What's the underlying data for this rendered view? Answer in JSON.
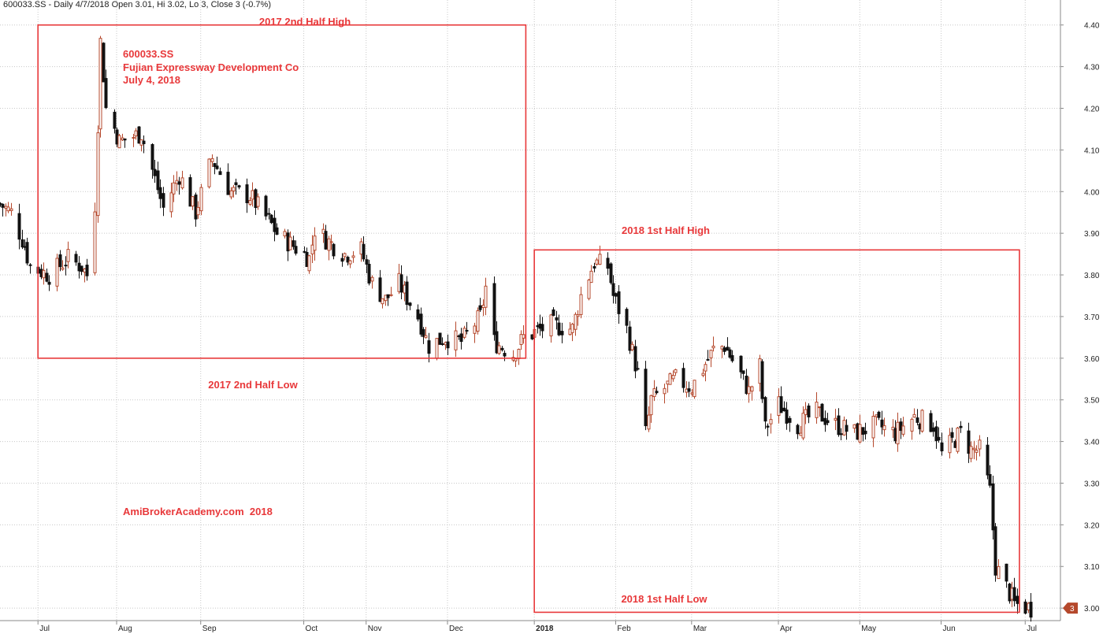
{
  "header": {
    "text": "600033.SS - Daily 4/7/2018 Open 3.01, Hi 3.02, Lo 3, Close 3 (-0.7%)"
  },
  "annotations": {
    "symbol": "600033.SS",
    "company": "Fujian Expressway Development Co",
    "date": "July 4, 2018",
    "h2_2017_high": "2017 2nd Half High",
    "h2_2017_low": "2017 2nd Half Low",
    "h1_2018_high": "2018 1st Half High",
    "h1_2018_low": "2018 1st Half Low",
    "watermark": "AmiBrokerAcademy.com  2018"
  },
  "colors": {
    "background": "#ffffff",
    "grid": "#c8c8c8",
    "up_candle": "#b5482c",
    "down_candle": "#111111",
    "annotation": "#e8383a",
    "axis_text": "#222222",
    "last_price_marker": "#b5482c"
  },
  "chart_data": {
    "type": "candlestick",
    "y_axis": {
      "position": "right",
      "ylim": [
        2.97,
        4.46
      ],
      "ticks": [
        "4.40",
        "4.30",
        "4.20",
        "4.10",
        "4.00",
        "3.90",
        "3.80",
        "3.70",
        "3.60",
        "3.50",
        "3.40",
        "3.30",
        "3.20",
        "3.10",
        "3.00"
      ]
    },
    "x_axis": {
      "start": "2017-06-19",
      "end": "2018-07-15",
      "labels": [
        {
          "date": "2017-07-03",
          "label": "Jul"
        },
        {
          "date": "2017-08-01",
          "label": "Aug"
        },
        {
          "date": "2017-09-01",
          "label": "Sep"
        },
        {
          "date": "2017-10-09",
          "label": "Oct"
        },
        {
          "date": "2017-11-01",
          "label": "Nov"
        },
        {
          "date": "2017-12-01",
          "label": "Dec"
        },
        {
          "date": "2018-01-02",
          "label": "2018"
        },
        {
          "date": "2018-02-01",
          "label": "Feb"
        },
        {
          "date": "2018-03-01",
          "label": "Mar"
        },
        {
          "date": "2018-04-02",
          "label": "Apr"
        },
        {
          "date": "2018-05-02",
          "label": "May"
        },
        {
          "date": "2018-06-01",
          "label": "Jun"
        },
        {
          "date": "2018-07-02",
          "label": "Jul"
        }
      ]
    },
    "grid": true,
    "last_price": {
      "value": 3.0,
      "label": "3"
    },
    "ranges": [
      {
        "name": "2017 2nd Half",
        "start": "2017-07-03",
        "end": "2017-12-29",
        "high": 4.4,
        "low": 3.6
      },
      {
        "name": "2018 1st Half",
        "start": "2018-01-02",
        "end": "2018-06-29",
        "high": 3.86,
        "low": 2.99
      }
    ],
    "price_anchors": [
      {
        "date": "2017-06-19",
        "close": 3.97
      },
      {
        "date": "2017-06-23",
        "close": 3.95
      },
      {
        "date": "2017-06-28",
        "close": 3.87
      },
      {
        "date": "2017-06-30",
        "close": 3.82
      },
      {
        "date": "2017-07-07",
        "close": 3.8
      },
      {
        "date": "2017-07-14",
        "close": 3.84
      },
      {
        "date": "2017-07-19",
        "close": 3.82
      },
      {
        "date": "2017-07-21",
        "close": 3.8
      },
      {
        "date": "2017-07-24",
        "close": 3.97
      },
      {
        "date": "2017-07-26",
        "close": 4.36
      },
      {
        "date": "2017-07-28",
        "close": 4.2
      },
      {
        "date": "2017-08-02",
        "close": 4.12
      },
      {
        "date": "2017-08-10",
        "close": 4.14
      },
      {
        "date": "2017-08-15",
        "close": 4.03
      },
      {
        "date": "2017-08-18",
        "close": 3.96
      },
      {
        "date": "2017-08-24",
        "close": 4.04
      },
      {
        "date": "2017-08-30",
        "close": 3.95
      },
      {
        "date": "2017-09-05",
        "close": 4.08
      },
      {
        "date": "2017-09-12",
        "close": 4.0
      },
      {
        "date": "2017-09-19",
        "close": 3.99
      },
      {
        "date": "2017-09-26",
        "close": 3.93
      },
      {
        "date": "2017-09-29",
        "close": 3.9
      },
      {
        "date": "2017-10-11",
        "close": 3.84
      },
      {
        "date": "2017-10-13",
        "close": 3.91
      },
      {
        "date": "2017-10-18",
        "close": 3.88
      },
      {
        "date": "2017-10-24",
        "close": 3.85
      },
      {
        "date": "2017-10-30",
        "close": 3.86
      },
      {
        "date": "2017-11-03",
        "close": 3.78
      },
      {
        "date": "2017-11-08",
        "close": 3.74
      },
      {
        "date": "2017-11-13",
        "close": 3.78
      },
      {
        "date": "2017-11-20",
        "close": 3.7
      },
      {
        "date": "2017-11-24",
        "close": 3.63
      },
      {
        "date": "2017-11-30",
        "close": 3.65
      },
      {
        "date": "2017-12-06",
        "close": 3.64
      },
      {
        "date": "2017-12-13",
        "close": 3.7
      },
      {
        "date": "2017-12-15",
        "close": 3.77
      },
      {
        "date": "2017-12-18",
        "close": 3.64
      },
      {
        "date": "2017-12-25",
        "close": 3.61
      },
      {
        "date": "2017-12-29",
        "close": 3.65
      },
      {
        "date": "2018-01-08",
        "close": 3.68
      },
      {
        "date": "2018-01-16",
        "close": 3.67
      },
      {
        "date": "2018-01-19",
        "close": 3.75
      },
      {
        "date": "2018-01-24",
        "close": 3.83
      },
      {
        "date": "2018-01-29",
        "close": 3.82
      },
      {
        "date": "2018-01-31",
        "close": 3.75
      },
      {
        "date": "2018-02-05",
        "close": 3.67
      },
      {
        "date": "2018-02-09",
        "close": 3.56
      },
      {
        "date": "2018-02-12",
        "close": 3.42
      },
      {
        "date": "2018-02-14",
        "close": 3.5
      },
      {
        "date": "2018-02-23",
        "close": 3.55
      },
      {
        "date": "2018-03-01",
        "close": 3.53
      },
      {
        "date": "2018-03-09",
        "close": 3.62
      },
      {
        "date": "2018-03-13",
        "close": 3.63
      },
      {
        "date": "2018-03-19",
        "close": 3.56
      },
      {
        "date": "2018-03-22",
        "close": 3.52
      },
      {
        "date": "2018-03-26",
        "close": 3.58
      },
      {
        "date": "2018-03-28",
        "close": 3.43
      },
      {
        "date": "2018-04-02",
        "close": 3.49
      },
      {
        "date": "2018-04-09",
        "close": 3.44
      },
      {
        "date": "2018-04-16",
        "close": 3.47
      },
      {
        "date": "2018-04-23",
        "close": 3.44
      },
      {
        "date": "2018-04-30",
        "close": 3.42
      },
      {
        "date": "2018-05-08",
        "close": 3.44
      },
      {
        "date": "2018-05-15",
        "close": 3.42
      },
      {
        "date": "2018-05-22",
        "close": 3.46
      },
      {
        "date": "2018-05-29",
        "close": 3.44
      },
      {
        "date": "2018-06-01",
        "close": 3.37
      },
      {
        "date": "2018-06-05",
        "close": 3.4
      },
      {
        "date": "2018-06-08",
        "close": 3.42
      },
      {
        "date": "2018-06-12",
        "close": 3.38
      },
      {
        "date": "2018-06-15",
        "close": 3.38
      },
      {
        "date": "2018-06-19",
        "close": 3.28
      },
      {
        "date": "2018-06-21",
        "close": 3.1
      },
      {
        "date": "2018-06-25",
        "close": 3.05
      },
      {
        "date": "2018-06-28",
        "close": 3.01
      },
      {
        "date": "2018-07-04",
        "close": 3.0
      }
    ]
  }
}
